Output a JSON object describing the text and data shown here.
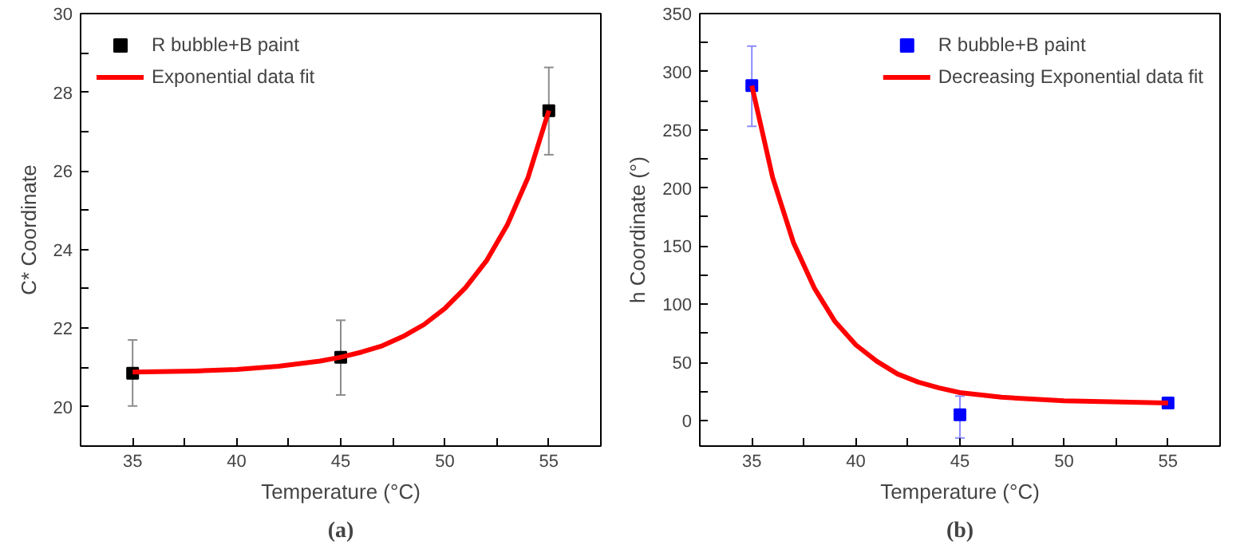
{
  "chart_data": [
    {
      "type": "scatter",
      "xlabel": "Temperature (°C)",
      "ylabel": "C* Coordinate",
      "xlim": [
        32.5,
        57.5
      ],
      "ylim": [
        19,
        30
      ],
      "xticks": [
        35,
        {
          "value": 37.5,
          "label": null
        },
        40,
        {
          "value": 42.5,
          "label": null
        },
        45,
        {
          "value": 47.5,
          "label": null
        },
        50,
        {
          "value": 52.5,
          "label": null
        },
        55
      ],
      "yticks": [
        20,
        {
          "value": 21,
          "label": null
        },
        22,
        {
          "value": 23,
          "label": null
        },
        24,
        {
          "value": 25,
          "label": null
        },
        26,
        {
          "value": 27,
          "label": null
        },
        28,
        {
          "value": 29,
          "label": null
        },
        30
      ],
      "legend": "top left",
      "annotations": [
        "(a)"
      ],
      "series": [
        {
          "name": "R bubble+B paint",
          "marker": "square",
          "color": "#000000",
          "x": [
            35,
            45,
            55
          ],
          "values": [
            20.85,
            21.26,
            27.53
          ],
          "errors": [
            [
              20.02,
              21.7
            ],
            [
              20.3,
              22.2
            ],
            [
              26.41,
              28.63
            ]
          ]
        },
        {
          "name": "Exponential data fit",
          "type": "line",
          "color": "#ff0000",
          "x": [
            35,
            38,
            40,
            42,
            44,
            45,
            46,
            47,
            48,
            49,
            50,
            51,
            52,
            53,
            54,
            55
          ],
          "values": [
            20.88,
            20.91,
            20.95,
            21.03,
            21.16,
            21.26,
            21.39,
            21.55,
            21.79,
            22.09,
            22.5,
            23.03,
            23.71,
            24.62,
            25.83,
            27.53
          ]
        }
      ]
    },
    {
      "type": "scatter",
      "xlabel": "Temperature (°C)",
      "ylabel": "h Coordinate (°)",
      "xlim": [
        32.5,
        57.5
      ],
      "ylim": [
        -22,
        350
      ],
      "xticks": [
        35,
        {
          "value": 37.5,
          "label": null
        },
        40,
        {
          "value": 42.5,
          "label": null
        },
        45,
        {
          "value": 47.5,
          "label": null
        },
        50,
        {
          "value": 52.5,
          "label": null
        },
        55
      ],
      "yticks": [
        0,
        {
          "value": 25,
          "label": null
        },
        50,
        {
          "value": 75,
          "label": null
        },
        100,
        {
          "value": 125,
          "label": null
        },
        150,
        {
          "value": 175,
          "label": null
        },
        200,
        {
          "value": 225,
          "label": null
        },
        250,
        {
          "value": 275,
          "label": null
        },
        300,
        {
          "value": 325,
          "label": null
        },
        350
      ],
      "legend": "top right",
      "annotations": [
        "(b)"
      ],
      "series": [
        {
          "name": "R bubble+B paint",
          "marker": "square",
          "color": "#0000ff",
          "x": [
            35,
            45,
            55
          ],
          "values": [
            288,
            5,
            15
          ],
          "errors": [
            [
              253,
              322
            ],
            [
              -15,
              21
            ],
            [
              12,
              18
            ]
          ]
        },
        {
          "name": "Decreasing Exponential data fit",
          "type": "line",
          "color": "#ff0000",
          "x": [
            35,
            36,
            37,
            38,
            39,
            40,
            41,
            42,
            43,
            44,
            45,
            47,
            50,
            55
          ],
          "values": [
            288,
            209,
            153,
            114,
            85,
            65,
            51,
            40,
            33,
            28,
            24,
            20,
            17,
            15
          ]
        }
      ]
    }
  ]
}
